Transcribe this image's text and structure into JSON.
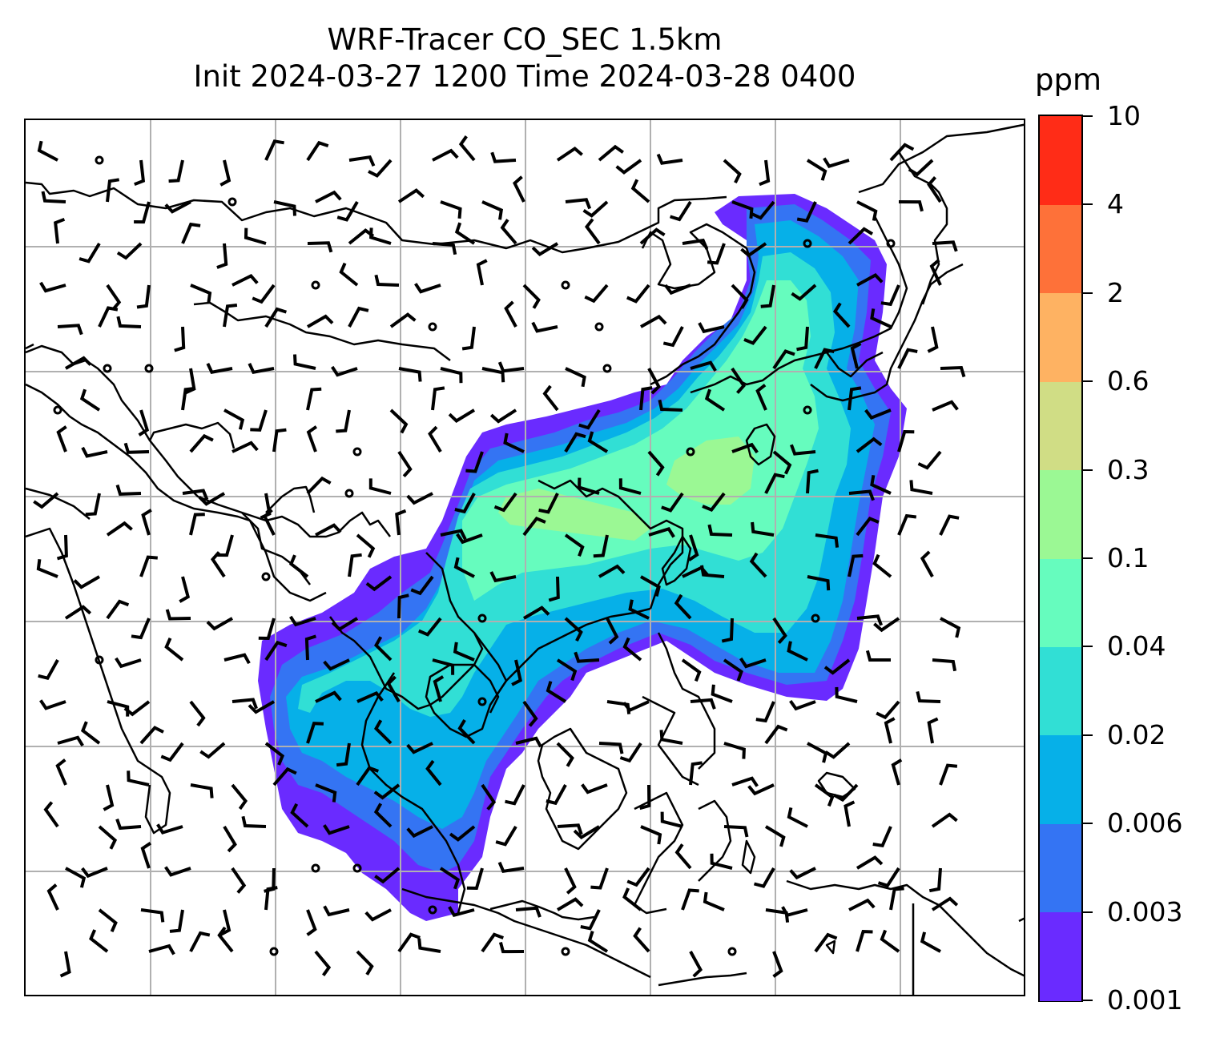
{
  "title": {
    "line1": "WRF-Tracer CO_SEC 1.5km",
    "line2": "Init 2024-03-27 1200 Time 2024-03-28 0400"
  },
  "colorbar": {
    "unit": "ppm",
    "levels": [
      "0.001",
      "0.003",
      "0.006",
      "0.02",
      "0.04",
      "0.1",
      "0.3",
      "0.6",
      "2",
      "4",
      "10"
    ],
    "colors": [
      "#6a2bff",
      "#3474f3",
      "#06b0e8",
      "#31dfd5",
      "#66fcbe",
      "#9bf894",
      "#d0dd85",
      "#feb262",
      "#fe7139",
      "#ff2c17"
    ]
  },
  "colors": {
    "coastline": "#000000",
    "gridline": "#b0b0b0",
    "wind_barb": "#000000"
  }
}
